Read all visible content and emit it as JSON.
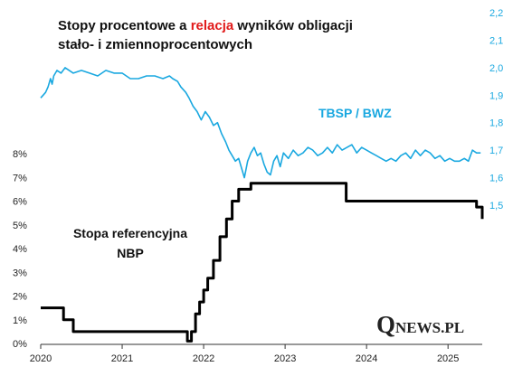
{
  "title": {
    "line1_pre": "Stopy procentowe a ",
    "line1_highlight": "relacja",
    "line1_post": " wyników obligacji",
    "line2": "stało- i zmiennoprocentowych",
    "highlight_color": "#e11a1a"
  },
  "logo": {
    "letter": "Q",
    "rest": "NEWS.PL"
  },
  "chart_data": {
    "type": "line",
    "x_ticks": [
      "2020",
      "2021",
      "2022",
      "2023",
      "2024",
      "2025"
    ],
    "x_range": [
      2020.0,
      2025.42
    ],
    "y_left": {
      "ticks": [
        "0%",
        "1%",
        "2%",
        "3%",
        "4%",
        "5%",
        "6%",
        "7%",
        "8%"
      ],
      "range": [
        0,
        8
      ]
    },
    "y_right": {
      "ticks": [
        "1,5",
        "1,6",
        "1,7",
        "1,8",
        "1,9",
        "2,0",
        "2,1",
        "2,2"
      ],
      "range": [
        1.5,
        2.2
      ]
    },
    "grid": false,
    "series": [
      {
        "name": "TBSP / BWZ",
        "axis": "right",
        "color": "#1aa8e0",
        "x": [
          2020.0,
          2020.03,
          2020.06,
          2020.09,
          2020.12,
          2020.14,
          2020.16,
          2020.2,
          2020.25,
          2020.3,
          2020.4,
          2020.5,
          2020.6,
          2020.7,
          2020.8,
          2020.9,
          2021.0,
          2021.1,
          2021.2,
          2021.3,
          2021.4,
          2021.5,
          2021.58,
          2021.62,
          2021.68,
          2021.72,
          2021.78,
          2021.82,
          2021.87,
          2021.92,
          2021.97,
          2022.02,
          2022.07,
          2022.12,
          2022.17,
          2022.22,
          2022.27,
          2022.31,
          2022.35,
          2022.39,
          2022.43,
          2022.46,
          2022.5,
          2022.54,
          2022.58,
          2022.62,
          2022.66,
          2022.7,
          2022.74,
          2022.78,
          2022.82,
          2022.86,
          2022.9,
          2022.94,
          2022.98,
          2023.04,
          2023.1,
          2023.16,
          2023.22,
          2023.28,
          2023.34,
          2023.4,
          2023.46,
          2023.52,
          2023.58,
          2023.64,
          2023.7,
          2023.76,
          2023.82,
          2023.88,
          2023.94,
          2024.0,
          2024.06,
          2024.12,
          2024.18,
          2024.24,
          2024.3,
          2024.36,
          2024.42,
          2024.48,
          2024.54,
          2024.6,
          2024.66,
          2024.72,
          2024.78,
          2024.84,
          2024.9,
          2024.96,
          2025.02,
          2025.08,
          2025.14,
          2025.2,
          2025.25,
          2025.3,
          2025.35,
          2025.4
        ],
        "values": [
          1.89,
          1.9,
          1.91,
          1.93,
          1.96,
          1.94,
          1.97,
          1.99,
          1.98,
          2.0,
          1.98,
          1.99,
          1.98,
          1.97,
          1.99,
          1.98,
          1.98,
          1.96,
          1.96,
          1.97,
          1.97,
          1.96,
          1.97,
          1.96,
          1.95,
          1.93,
          1.91,
          1.89,
          1.86,
          1.84,
          1.81,
          1.84,
          1.82,
          1.79,
          1.8,
          1.76,
          1.73,
          1.7,
          1.68,
          1.66,
          1.67,
          1.64,
          1.6,
          1.66,
          1.69,
          1.71,
          1.68,
          1.69,
          1.65,
          1.62,
          1.61,
          1.66,
          1.68,
          1.64,
          1.69,
          1.67,
          1.7,
          1.68,
          1.69,
          1.71,
          1.7,
          1.68,
          1.69,
          1.71,
          1.69,
          1.72,
          1.7,
          1.71,
          1.72,
          1.69,
          1.71,
          1.7,
          1.69,
          1.68,
          1.67,
          1.66,
          1.67,
          1.66,
          1.68,
          1.69,
          1.67,
          1.7,
          1.68,
          1.7,
          1.69,
          1.67,
          1.68,
          1.66,
          1.67,
          1.66,
          1.66,
          1.67,
          1.66,
          1.7,
          1.69,
          1.69
        ]
      },
      {
        "name": "Stopa referencyjna NBP",
        "axis": "left",
        "color": "#000000",
        "step": true,
        "x": [
          2020.0,
          2020.2,
          2020.28,
          2020.4,
          2021.8,
          2021.85,
          2021.9,
          2021.95,
          2022.0,
          2022.05,
          2022.12,
          2022.2,
          2022.28,
          2022.35,
          2022.43,
          2022.5,
          2022.58,
          2022.66,
          2022.75,
          2023.68,
          2023.75,
          2025.35,
          2025.42
        ],
        "values": [
          1.5,
          1.5,
          1.0,
          0.5,
          0.1,
          0.5,
          1.25,
          1.75,
          2.25,
          2.75,
          3.5,
          4.5,
          5.25,
          6.0,
          6.5,
          6.5,
          6.75,
          6.75,
          6.75,
          6.75,
          6.0,
          5.75,
          5.25
        ]
      }
    ]
  },
  "labels": {
    "tbsp_bwz": "TBSP / BWZ",
    "ref_line1": "Stopa referencyjna",
    "ref_line2": "NBP"
  },
  "colors": {
    "tbsp": "#1aa8e0",
    "ref": "#000000",
    "axis": "#333333"
  }
}
